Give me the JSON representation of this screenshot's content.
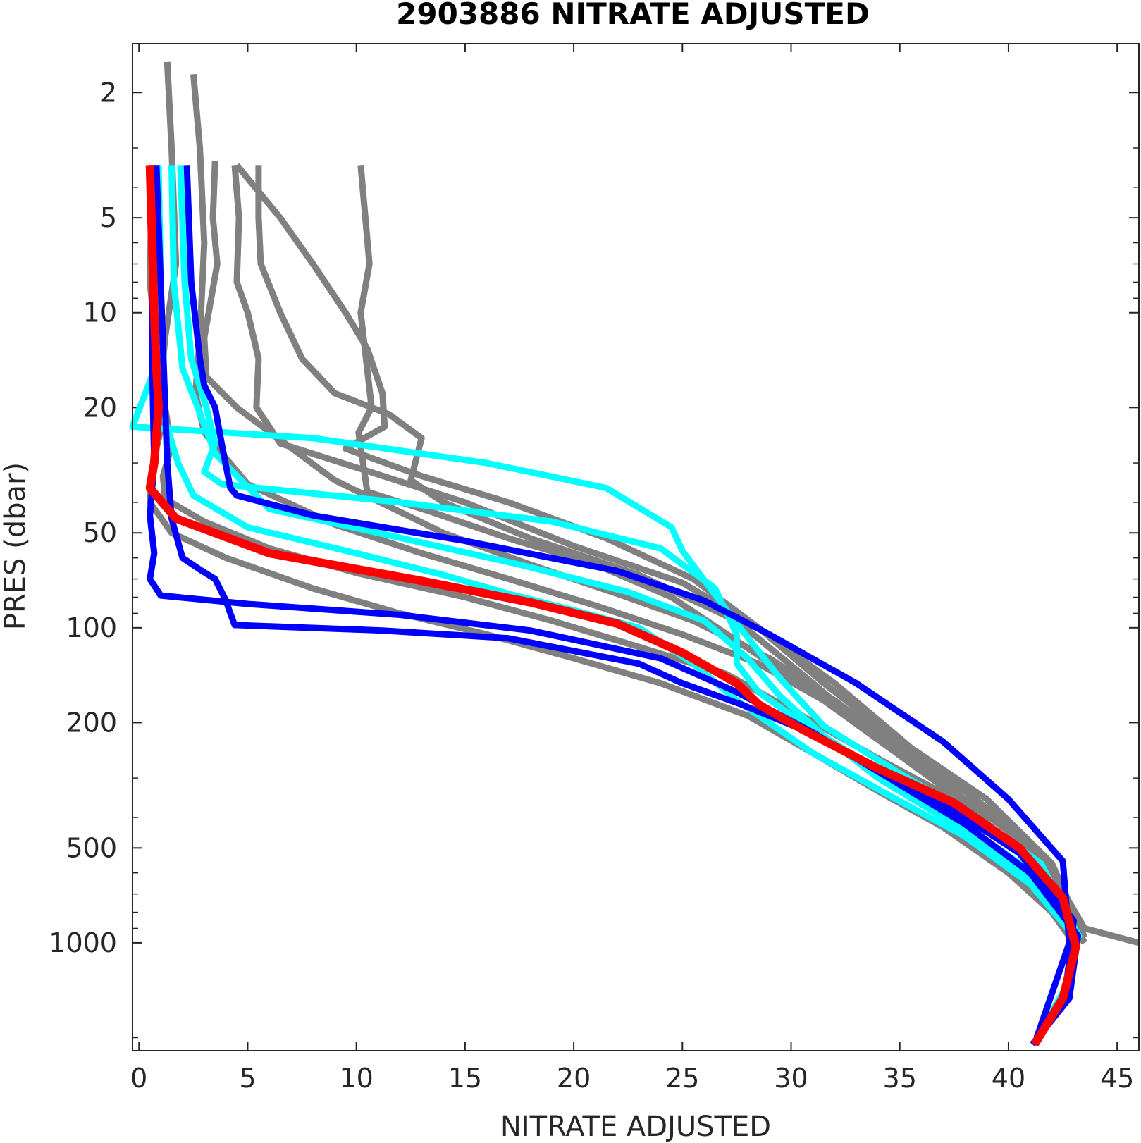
{
  "chart_data": {
    "type": "line",
    "title": "2903886  NITRATE ADJUSTED",
    "xlabel": "NITRATE ADJUSTED",
    "ylabel": "PRES (dbar)",
    "xlim": [
      -0.3,
      46
    ],
    "ylim": [
      1.4,
      2200
    ],
    "yscale": "log",
    "yreversed": true,
    "xticks": [
      0,
      5,
      10,
      15,
      20,
      25,
      30,
      35,
      40,
      45
    ],
    "yticks": [
      2,
      5,
      10,
      20,
      50,
      100,
      200,
      500,
      1000
    ],
    "grid": false,
    "colors": {
      "gray": "#808080",
      "cyan": "#00ffff",
      "blue": "#0000ff",
      "red": "#ff0000"
    },
    "series": [
      {
        "color": "gray",
        "x": [
          1.3,
          1.5,
          1.7,
          1.2,
          1.0,
          1.1,
          0.8,
          0.6,
          0.5,
          1.5,
          4,
          8,
          12,
          16,
          20,
          24,
          28,
          31,
          34,
          37,
          40,
          42,
          43
        ],
        "y": [
          1.6,
          3,
          7,
          12,
          17,
          22,
          27,
          32,
          40,
          50,
          60,
          75,
          90,
          105,
          125,
          150,
          190,
          250,
          330,
          430,
          600,
          800,
          1000
        ]
      },
      {
        "color": "gray",
        "x": [
          2.5,
          2.8,
          3.0,
          2.8,
          2.6,
          3.0,
          5,
          9,
          13,
          17,
          21,
          25,
          28.5,
          31.5,
          34.5,
          37.5,
          40.5,
          42.5,
          43
        ],
        "y": [
          1.75,
          3,
          6,
          12,
          18,
          24,
          35,
          47,
          58,
          70,
          85,
          105,
          130,
          170,
          240,
          330,
          470,
          700,
          950
        ]
      },
      {
        "color": "gray",
        "x": [
          3.5,
          3.4,
          3.6,
          3.0,
          3.1,
          4.5,
          9,
          14,
          18,
          22,
          25.5,
          29,
          32,
          35,
          38,
          41,
          43
        ],
        "y": [
          3.3,
          5,
          7,
          12,
          16,
          20,
          34,
          50,
          63,
          78,
          95,
          125,
          170,
          240,
          330,
          480,
          800
        ]
      },
      {
        "color": "gray",
        "x": [
          4.4,
          4.6,
          4.5,
          5.0,
          5.5,
          5.4,
          6.5,
          10,
          15,
          20,
          25,
          28.5,
          32,
          35.5,
          39,
          42,
          43.5
        ],
        "y": [
          3.4,
          5,
          8,
          10,
          14,
          20,
          26,
          31,
          40,
          55,
          72,
          100,
          150,
          240,
          350,
          560,
          960
        ]
      },
      {
        "color": "gray",
        "x": [
          5.5,
          5.5,
          5.6,
          6.5,
          7.5,
          9,
          11.5,
          13,
          12.5,
          14,
          18,
          23,
          27.5,
          31,
          34.5,
          38,
          41,
          43.5
        ],
        "y": [
          3.4,
          5,
          7,
          10,
          14,
          18,
          21,
          25,
          34,
          40,
          52,
          68,
          95,
          150,
          240,
          360,
          560,
          1000
        ]
      },
      {
        "color": "gray",
        "x": [
          4.5,
          6.5,
          8,
          9.5,
          10.5,
          11.2,
          11.3,
          9.5,
          13,
          17,
          21.5,
          25.5,
          28.5,
          31.5,
          35,
          38.5,
          41.5,
          43.5
        ],
        "y": [
          3.4,
          5,
          7,
          10,
          13,
          18,
          23,
          27,
          33,
          40,
          52,
          70,
          100,
          150,
          230,
          350,
          530,
          1000
        ]
      },
      {
        "color": "gray",
        "x": [
          10.2,
          10.6,
          10.2,
          10.7,
          10.1,
          10.5,
          13.5,
          17,
          21,
          24.5,
          27.5,
          31,
          34.5,
          38,
          41.5,
          43.5,
          46
        ],
        "y": [
          3.4,
          7,
          10,
          20,
          24,
          37,
          43,
          52,
          63,
          80,
          110,
          160,
          240,
          350,
          520,
          900,
          1000
        ]
      },
      {
        "color": "gray",
        "x": [
          0.6,
          0.5,
          0.9,
          1.3,
          1.4,
          1.1,
          1.2,
          3,
          6,
          10,
          15,
          19,
          23,
          27,
          30.5,
          34,
          37.5,
          40.5,
          42.5,
          43
        ],
        "y": [
          3.4,
          8,
          15,
          22,
          28,
          33,
          39,
          46,
          56,
          67,
          80,
          95,
          115,
          140,
          190,
          260,
          350,
          500,
          720,
          980
        ]
      },
      {
        "color": "cyan",
        "x": [
          0.8,
          0.7,
          0.9,
          1.0,
          1.2,
          1.8,
          2.5,
          5,
          10,
          14,
          17,
          20,
          23,
          25.5,
          27.5,
          31,
          34.5,
          38,
          41,
          43,
          42.6,
          41.5
        ],
        "y": [
          3.4,
          8,
          12,
          17,
          22,
          30,
          38,
          48,
          58,
          68,
          78,
          88,
          100,
          130,
          170,
          250,
          340,
          460,
          650,
          950,
          1400,
          1900
        ]
      },
      {
        "color": "cyan",
        "x": [
          1.5,
          1.6,
          2.0,
          2.7,
          3.5,
          6,
          11,
          17.5,
          22.5,
          26,
          28,
          29.5,
          31.5,
          34,
          37.5,
          41,
          43.2
        ],
        "y": [
          3.4,
          8,
          15,
          20,
          28,
          42,
          50,
          63,
          77,
          95,
          125,
          165,
          220,
          300,
          420,
          620,
          1000
        ]
      },
      {
        "color": "cyan",
        "x": [
          1.9,
          2.1,
          2.4,
          3.1,
          3.5,
          3.0,
          3.8,
          12,
          19,
          24,
          26.5,
          27.5,
          27.5,
          28.5,
          30.5,
          33.5,
          37,
          40.5,
          42.8
        ],
        "y": [
          3.4,
          8,
          14,
          20,
          26,
          32,
          35,
          40,
          46,
          56,
          75,
          105,
          130,
          160,
          200,
          270,
          380,
          560,
          900
        ]
      },
      {
        "color": "cyan",
        "x": [
          0.9,
          1.0,
          0.9,
          -0.3,
          8,
          16,
          21.5,
          24.5,
          25,
          27.5,
          29.5,
          31.5,
          35,
          38.5,
          41.5,
          43.3
        ],
        "y": [
          3.4,
          8,
          14,
          23,
          25,
          30,
          36,
          48,
          57,
          97,
          145,
          205,
          290,
          400,
          560,
          970
        ]
      },
      {
        "color": "blue",
        "x": [
          0.6,
          0.6,
          0.7,
          0.5,
          0.7,
          0.5,
          1.0,
          5,
          12,
          18,
          24,
          27.5,
          31,
          34.5,
          38,
          41,
          43.2,
          42.8,
          41.1
        ],
        "y": [
          3.4,
          14,
          30,
          44,
          58,
          70,
          79,
          84,
          91,
          102,
          125,
          160,
          215,
          300,
          420,
          600,
          950,
          1500,
          2100
        ]
      },
      {
        "color": "blue",
        "x": [
          2.2,
          2.4,
          2.8,
          3.0,
          3.5,
          3.8,
          4.2,
          4.5,
          8,
          15,
          22,
          26,
          29,
          33,
          37,
          40,
          42.5,
          42.8,
          41.3
        ],
        "y": [
          3.4,
          8,
          14,
          17,
          20,
          26,
          36,
          38,
          44,
          53,
          66,
          82,
          105,
          150,
          230,
          350,
          550,
          1000,
          2000
        ]
      },
      {
        "color": "blue",
        "x": [
          0.8,
          1.3,
          1.5,
          2.0,
          2.9,
          3.5,
          4.0,
          4.2,
          4.4,
          11.2,
          17,
          23,
          25,
          27.7,
          30.5,
          34,
          37.5,
          40.5,
          43,
          42.6,
          41.2
        ],
        "y": [
          3.4,
          30,
          45,
          60,
          66,
          70,
          82,
          90,
          98,
          102,
          108,
          130,
          150,
          175,
          210,
          280,
          380,
          520,
          850,
          1500,
          2100
        ]
      },
      {
        "color": "red",
        "x": [
          0.5,
          0.7,
          0.8,
          0.9,
          0.7,
          0.5,
          1.7,
          6,
          13,
          18,
          22,
          25,
          27.5,
          28.5,
          30.5,
          34,
          37.5,
          40.5,
          42.5,
          43.1,
          42.5,
          41.2
        ],
        "y": [
          3.4,
          10,
          15,
          20,
          30,
          36,
          45,
          58,
          71,
          83,
          97,
          120,
          150,
          175,
          210,
          280,
          360,
          500,
          720,
          1030,
          1500,
          2100
        ]
      }
    ]
  }
}
